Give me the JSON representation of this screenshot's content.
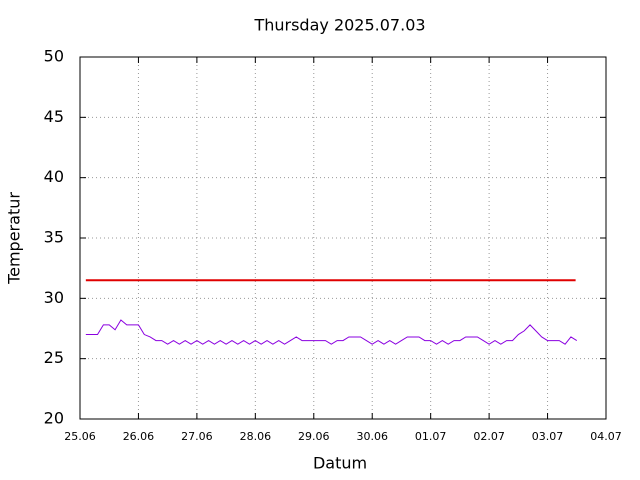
{
  "chart_data": {
    "type": "line",
    "title": "Thursday 2025.07.03",
    "xlabel": "Datum",
    "ylabel": "Temperatur",
    "xlim": [
      0,
      9
    ],
    "xticks": [
      {
        "value": 0,
        "label": "25.06"
      },
      {
        "value": 1,
        "label": "26.06"
      },
      {
        "value": 2,
        "label": "27.06"
      },
      {
        "value": 3,
        "label": "28.06"
      },
      {
        "value": 4,
        "label": "29.06"
      },
      {
        "value": 5,
        "label": "30.06"
      },
      {
        "value": 6,
        "label": "01.07"
      },
      {
        "value": 7,
        "label": "02.07"
      },
      {
        "value": 8,
        "label": "03.07"
      },
      {
        "value": 9,
        "label": "04.07"
      }
    ],
    "ylim": [
      20,
      50
    ],
    "yticks": [
      20,
      25,
      30,
      35,
      40,
      45,
      50
    ],
    "grid": true,
    "series": [
      {
        "color": "#e00000",
        "x": [
          0.1,
          8.48
        ],
        "values": [
          31.5,
          31.5
        ]
      },
      {
        "color": "#8a00e0",
        "x": [
          0.1,
          0.2,
          0.3,
          0.4,
          0.5,
          0.6,
          0.7,
          0.8,
          0.9,
          1.0,
          1.1,
          1.2,
          1.3,
          1.4,
          1.5,
          1.6,
          1.7,
          1.8,
          1.9,
          2.0,
          2.1,
          2.2,
          2.3,
          2.4,
          2.5,
          2.6,
          2.7,
          2.8,
          2.9,
          3.0,
          3.1,
          3.2,
          3.3,
          3.4,
          3.5,
          3.6,
          3.7,
          3.8,
          3.9,
          4.0,
          4.1,
          4.2,
          4.3,
          4.4,
          4.5,
          4.6,
          4.7,
          4.8,
          4.9,
          5.0,
          5.1,
          5.2,
          5.3,
          5.4,
          5.5,
          5.6,
          5.7,
          5.8,
          5.9,
          6.0,
          6.1,
          6.2,
          6.3,
          6.4,
          6.5,
          6.6,
          6.7,
          6.8,
          6.9,
          7.0,
          7.1,
          7.2,
          7.3,
          7.4,
          7.5,
          7.6,
          7.7,
          7.8,
          7.9,
          8.0,
          8.1,
          8.2,
          8.3,
          8.4,
          8.5
        ],
        "values": [
          27,
          27,
          27,
          27.8,
          27.8,
          27.4,
          28.2,
          27.8,
          27.8,
          27.8,
          27.0,
          26.8,
          26.5,
          26.5,
          26.2,
          26.5,
          26.2,
          26.5,
          26.2,
          26.5,
          26.2,
          26.5,
          26.2,
          26.5,
          26.2,
          26.5,
          26.2,
          26.5,
          26.2,
          26.5,
          26.2,
          26.5,
          26.2,
          26.5,
          26.2,
          26.5,
          26.8,
          26.5,
          26.5,
          26.5,
          26.5,
          26.5,
          26.2,
          26.5,
          26.5,
          26.8,
          26.8,
          26.8,
          26.5,
          26.2,
          26.5,
          26.2,
          26.5,
          26.2,
          26.5,
          26.8,
          26.8,
          26.8,
          26.5,
          26.5,
          26.2,
          26.5,
          26.2,
          26.5,
          26.5,
          26.8,
          26.8,
          26.8,
          26.5,
          26.2,
          26.5,
          26.2,
          26.5,
          26.5,
          27.0,
          27.3,
          27.8,
          27.3,
          26.8,
          26.5,
          26.5,
          26.5,
          26.2,
          26.8,
          26.5
        ]
      }
    ]
  }
}
